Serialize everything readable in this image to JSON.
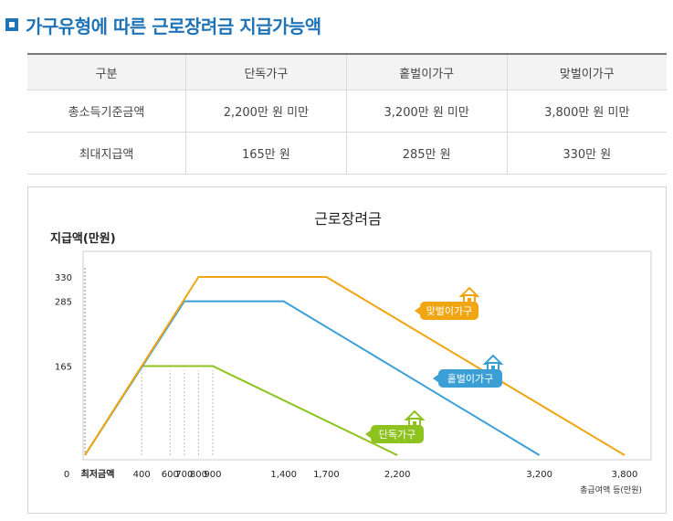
{
  "page": {
    "title": "가구유형에 따른 근로장려금 지급가능액"
  },
  "table": {
    "headers": [
      "구분",
      "단독가구",
      "홑벌이가구",
      "맞벌이가구"
    ],
    "rows": [
      [
        "총소득기준금액",
        "2,200만 원 미만",
        "3,200만 원 미만",
        "3,800만 원 미만"
      ],
      [
        "최대지급액",
        "165만 원",
        "285만 원",
        "330만 원"
      ]
    ]
  },
  "chart_data": {
    "type": "line",
    "title": "근로장려금",
    "ylabel": "지급액(만원)",
    "xlabel": "총급여액 등(만원)",
    "zero_label": "0",
    "min_wage_label": "최저금액",
    "y_ticks": [
      165,
      285,
      330
    ],
    "x_ticks": [
      400,
      600,
      700,
      800,
      900,
      1400,
      1700,
      2200,
      3200,
      3800
    ],
    "x_tick_labels": [
      "400",
      "600",
      "700",
      "800",
      "900",
      "1,400",
      "1,700",
      "2,200",
      "3,200",
      "3,800"
    ],
    "xlim": [
      0,
      3800
    ],
    "ylim": [
      0,
      330
    ],
    "series": [
      {
        "name": "단독가구",
        "color": "#8dc21f",
        "x": [
          0,
          400,
          900,
          2200
        ],
        "y": [
          0,
          165,
          165,
          0
        ]
      },
      {
        "name": "홑벌이가구",
        "color": "#3b9fd6",
        "x": [
          0,
          700,
          1400,
          3200
        ],
        "y": [
          0,
          285,
          285,
          0
        ]
      },
      {
        "name": "맞벌이가구",
        "color": "#f0a513",
        "x": [
          0,
          800,
          1700,
          3800
        ],
        "y": [
          0,
          330,
          330,
          0
        ]
      }
    ],
    "grid": false
  }
}
